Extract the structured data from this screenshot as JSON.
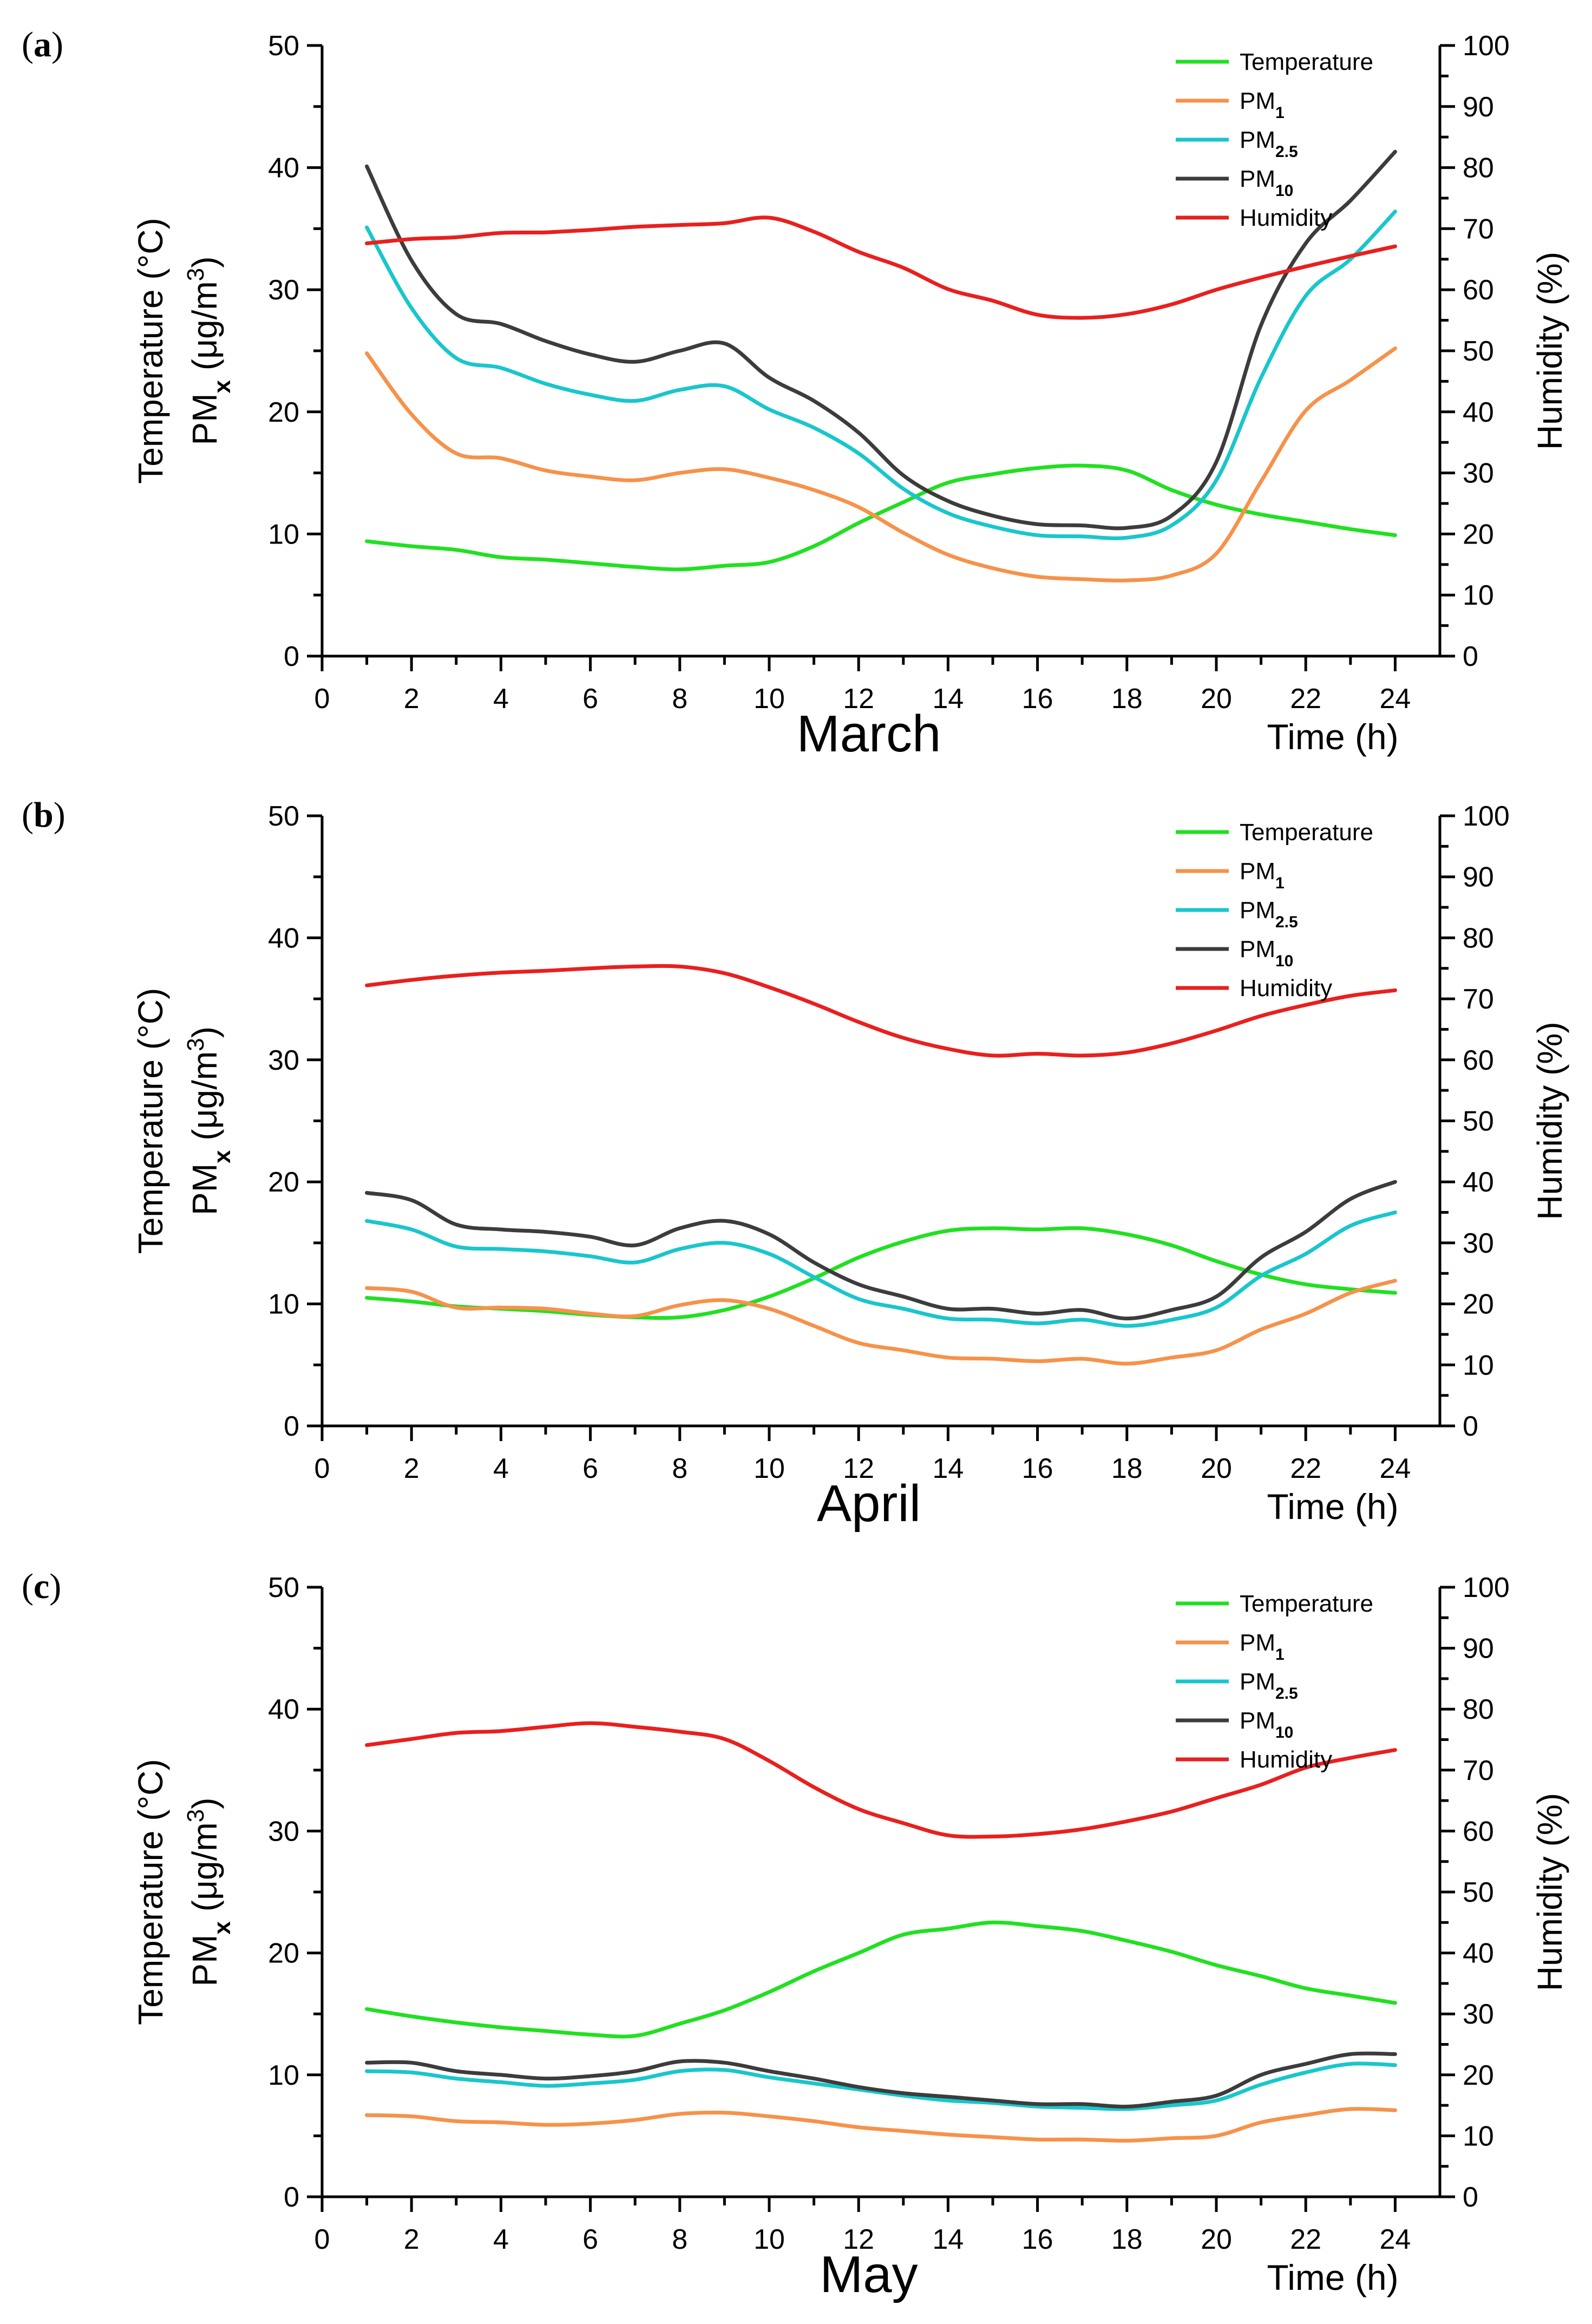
{
  "colors": {
    "temperature": "#21e021",
    "pm1": "#f6924a",
    "pm25": "#19c6cc",
    "pm10": "#3c3c3c",
    "humidity": "#e8201e"
  },
  "chart_data": [
    {
      "type": "line",
      "panel_label": "a",
      "month_label": "March",
      "xlabel": "Time (h)",
      "ylabel_left_line1": "Temperature (°C)",
      "ylabel_left_line2": "PMx (μg/m3)",
      "ylabel_right": "Humidity (%)",
      "xlim": [
        0,
        25
      ],
      "ylim_left": [
        0,
        50
      ],
      "ylim_right": [
        0,
        100
      ],
      "x_ticks": [
        0,
        2,
        4,
        6,
        8,
        10,
        12,
        14,
        16,
        18,
        20,
        22,
        24
      ],
      "y_ticks_left": [
        0,
        10,
        20,
        30,
        40,
        50
      ],
      "y_ticks_right": [
        0,
        10,
        20,
        30,
        40,
        50,
        60,
        70,
        80,
        90,
        100
      ],
      "legend": [
        "Temperature",
        "PM1",
        "PM2.5",
        "PM10",
        "Humidity"
      ],
      "x": [
        1,
        2,
        3,
        4,
        5,
        6,
        7,
        8,
        9,
        10,
        11,
        12,
        13,
        14,
        15,
        16,
        17,
        18,
        19,
        20,
        21,
        22,
        23,
        24
      ],
      "series": [
        {
          "name": "Temperature",
          "key": "temperature",
          "axis": "left",
          "values": [
            9.4,
            9.0,
            8.7,
            8.1,
            7.9,
            7.6,
            7.3,
            7.1,
            7.4,
            7.7,
            9.0,
            10.9,
            12.6,
            14.2,
            14.9,
            15.4,
            15.6,
            15.2,
            13.6,
            12.4,
            11.6,
            11.0,
            10.4,
            9.9
          ]
        },
        {
          "name": "PM1",
          "key": "pm1",
          "axis": "left",
          "values": [
            24.8,
            19.8,
            16.6,
            16.2,
            15.2,
            14.7,
            14.4,
            15.0,
            15.3,
            14.6,
            13.6,
            12.2,
            10.1,
            8.3,
            7.2,
            6.5,
            6.3,
            6.2,
            6.6,
            8.4,
            14.3,
            20.1,
            22.6,
            25.2
          ]
        },
        {
          "name": "PM2.5",
          "key": "pm25",
          "axis": "left",
          "values": [
            35.1,
            28.5,
            24.4,
            23.6,
            22.3,
            21.4,
            20.9,
            21.8,
            22.1,
            20.2,
            18.7,
            16.6,
            13.7,
            11.7,
            10.6,
            9.9,
            9.8,
            9.7,
            10.7,
            14.4,
            22.8,
            29.5,
            32.5,
            36.4
          ]
        },
        {
          "name": "PM10",
          "key": "pm10",
          "axis": "left",
          "values": [
            40.1,
            32.4,
            28.0,
            27.2,
            25.8,
            24.7,
            24.1,
            25.0,
            25.6,
            22.8,
            20.9,
            18.3,
            14.8,
            12.7,
            11.5,
            10.8,
            10.7,
            10.5,
            11.5,
            15.9,
            27.1,
            33.8,
            37.3,
            41.3
          ]
        },
        {
          "name": "Humidity",
          "key": "humidity",
          "axis": "right",
          "values": [
            67.6,
            68.3,
            68.6,
            69.3,
            69.4,
            69.8,
            70.3,
            70.6,
            70.9,
            71.8,
            69.5,
            66.2,
            63.6,
            60.1,
            58.2,
            55.9,
            55.4,
            56.0,
            57.6,
            60.0,
            62.0,
            63.8,
            65.5,
            67.1
          ]
        }
      ]
    },
    {
      "type": "line",
      "panel_label": "b",
      "month_label": "April",
      "xlabel": "Time (h)",
      "ylabel_left_line1": "Temperature (°C)",
      "ylabel_left_line2": "PMx (μg/m3)",
      "ylabel_right": "Humidity (%)",
      "xlim": [
        0,
        25
      ],
      "ylim_left": [
        0,
        50
      ],
      "ylim_right": [
        0,
        100
      ],
      "x_ticks": [
        0,
        2,
        4,
        6,
        8,
        10,
        12,
        14,
        16,
        18,
        20,
        22,
        24
      ],
      "y_ticks_left": [
        0,
        10,
        20,
        30,
        40,
        50
      ],
      "y_ticks_right": [
        0,
        10,
        20,
        30,
        40,
        50,
        60,
        70,
        80,
        90,
        100
      ],
      "legend": [
        "Temperature",
        "PM1",
        "PM2.5",
        "PM10",
        "Humidity"
      ],
      "x": [
        1,
        2,
        3,
        4,
        5,
        6,
        7,
        8,
        9,
        10,
        11,
        12,
        13,
        14,
        15,
        16,
        17,
        18,
        19,
        20,
        21,
        22,
        23,
        24
      ],
      "series": [
        {
          "name": "Temperature",
          "key": "temperature",
          "axis": "left",
          "values": [
            10.5,
            10.2,
            9.8,
            9.6,
            9.4,
            9.1,
            8.9,
            8.9,
            9.5,
            10.6,
            12.1,
            13.8,
            15.1,
            16.0,
            16.2,
            16.1,
            16.2,
            15.7,
            14.8,
            13.5,
            12.4,
            11.6,
            11.2,
            10.9
          ]
        },
        {
          "name": "PM1",
          "key": "pm1",
          "axis": "left",
          "values": [
            11.3,
            11.0,
            9.7,
            9.7,
            9.6,
            9.2,
            9.0,
            9.9,
            10.3,
            9.6,
            8.2,
            6.8,
            6.2,
            5.6,
            5.5,
            5.3,
            5.5,
            5.1,
            5.6,
            6.2,
            7.9,
            9.2,
            10.9,
            11.9
          ]
        },
        {
          "name": "PM2.5",
          "key": "pm25",
          "axis": "left",
          "values": [
            16.8,
            16.1,
            14.7,
            14.5,
            14.3,
            13.9,
            13.4,
            14.5,
            15.0,
            14.1,
            12.2,
            10.4,
            9.6,
            8.8,
            8.7,
            8.4,
            8.7,
            8.2,
            8.7,
            9.7,
            12.3,
            14.1,
            16.4,
            17.5
          ]
        },
        {
          "name": "PM10",
          "key": "pm10",
          "axis": "left",
          "values": [
            19.1,
            18.5,
            16.5,
            16.1,
            15.9,
            15.5,
            14.8,
            16.2,
            16.8,
            15.7,
            13.4,
            11.6,
            10.6,
            9.6,
            9.6,
            9.2,
            9.5,
            8.8,
            9.5,
            10.6,
            13.8,
            15.9,
            18.6,
            20.0
          ]
        },
        {
          "name": "Humidity",
          "key": "humidity",
          "axis": "right",
          "values": [
            72.2,
            73.1,
            73.8,
            74.3,
            74.6,
            75.0,
            75.3,
            75.3,
            74.2,
            71.9,
            69.2,
            66.2,
            63.6,
            61.8,
            60.7,
            61.0,
            60.7,
            61.2,
            62.7,
            64.8,
            67.2,
            69.0,
            70.5,
            71.4
          ]
        }
      ]
    },
    {
      "type": "line",
      "panel_label": "c",
      "month_label": "May",
      "xlabel": "Time (h)",
      "ylabel_left_line1": "Temperature (°C)",
      "ylabel_left_line2": "PMx (μg/m3)",
      "ylabel_right": "Humidity (%)",
      "xlim": [
        0,
        25
      ],
      "ylim_left": [
        0,
        50
      ],
      "ylim_right": [
        0,
        100
      ],
      "x_ticks": [
        0,
        2,
        4,
        6,
        8,
        10,
        12,
        14,
        16,
        18,
        20,
        22,
        24
      ],
      "y_ticks_left": [
        0,
        10,
        20,
        30,
        40,
        50
      ],
      "y_ticks_right": [
        0,
        10,
        20,
        30,
        40,
        50,
        60,
        70,
        80,
        90,
        100
      ],
      "legend": [
        "Temperature",
        "PM1",
        "PM2.5",
        "PM10",
        "Humidity"
      ],
      "x": [
        1,
        2,
        3,
        4,
        5,
        6,
        7,
        8,
        9,
        10,
        11,
        12,
        13,
        14,
        15,
        16,
        17,
        18,
        19,
        20,
        21,
        22,
        23,
        24
      ],
      "series": [
        {
          "name": "Temperature",
          "key": "temperature",
          "axis": "left",
          "values": [
            15.4,
            14.8,
            14.3,
            13.9,
            13.6,
            13.3,
            13.2,
            14.2,
            15.3,
            16.8,
            18.5,
            20.0,
            21.5,
            22.0,
            22.5,
            22.2,
            21.8,
            21.0,
            20.1,
            19.0,
            18.1,
            17.1,
            16.5,
            15.9
          ]
        },
        {
          "name": "PM1",
          "key": "pm1",
          "axis": "left",
          "values": [
            6.7,
            6.6,
            6.2,
            6.1,
            5.9,
            6.0,
            6.3,
            6.8,
            6.9,
            6.6,
            6.2,
            5.7,
            5.4,
            5.1,
            4.9,
            4.7,
            4.7,
            4.6,
            4.8,
            5.0,
            6.1,
            6.7,
            7.2,
            7.1
          ]
        },
        {
          "name": "PM2.5",
          "key": "pm25",
          "axis": "left",
          "values": [
            10.3,
            10.2,
            9.7,
            9.4,
            9.1,
            9.3,
            9.6,
            10.3,
            10.4,
            9.8,
            9.3,
            8.8,
            8.3,
            7.9,
            7.7,
            7.4,
            7.3,
            7.2,
            7.5,
            7.9,
            9.2,
            10.2,
            10.9,
            10.8
          ]
        },
        {
          "name": "PM10",
          "key": "pm10",
          "axis": "left",
          "values": [
            11.0,
            11.0,
            10.3,
            10.0,
            9.7,
            9.9,
            10.3,
            11.1,
            11.0,
            10.3,
            9.7,
            9.0,
            8.5,
            8.2,
            7.9,
            7.6,
            7.6,
            7.4,
            7.8,
            8.3,
            10.0,
            10.9,
            11.7,
            11.7
          ]
        },
        {
          "name": "Humidity",
          "key": "humidity",
          "axis": "right",
          "values": [
            74.1,
            75.1,
            76.1,
            76.4,
            77.1,
            77.7,
            77.1,
            76.3,
            75.1,
            71.5,
            67.2,
            63.6,
            61.3,
            59.3,
            59.1,
            59.5,
            60.3,
            61.6,
            63.2,
            65.4,
            67.6,
            70.4,
            72.0,
            73.3
          ]
        }
      ]
    }
  ]
}
